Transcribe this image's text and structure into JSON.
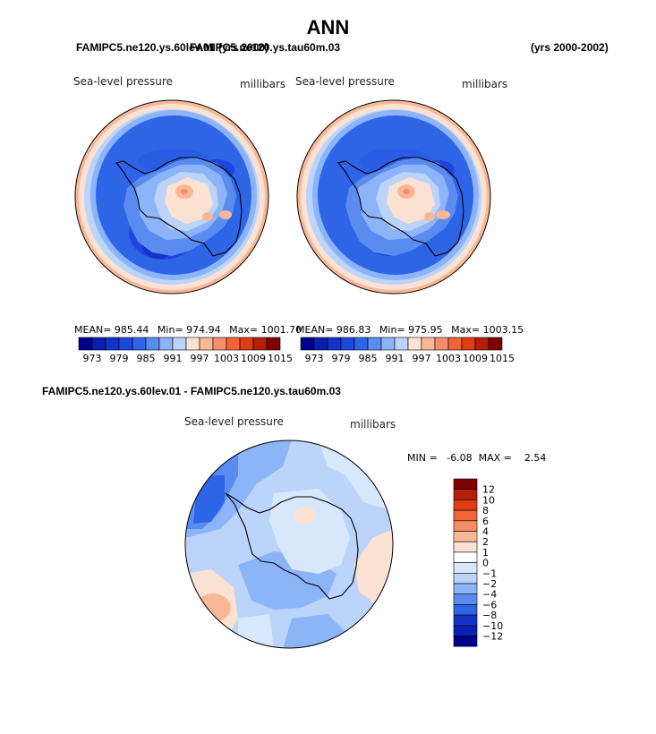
{
  "title": "ANN",
  "panels": [
    {
      "case_name": "FAMIPC5.ne120.ys.60lev.01",
      "years": "(yrs 2000)",
      "field": "Sea-level pressure",
      "units": "millibars",
      "stats": {
        "mean_label": "MEAN=",
        "mean": "985.44",
        "min_label": "Min=",
        "min": "974.94",
        "max_label": "Max=",
        "max": "1001.70"
      }
    },
    {
      "case_name": "FAMIPC5.ne120.ys.tau60m.03",
      "years": "(yrs 2000-2002)",
      "field": "Sea-level pressure",
      "units": "millibars",
      "stats": {
        "mean_label": "MEAN=",
        "mean": "986.83",
        "min_label": "Min=",
        "min": "975.95",
        "max_label": "Max=",
        "max": "1003.15"
      }
    }
  ],
  "diff_panel": {
    "title": "FAMIPC5.ne120.ys.60lev.01 - FAMIPC5.ne120.ys.tau60m.03",
    "field": "Sea-level pressure",
    "units": "millibars",
    "minmax": "MIN =   -6.08  MAX =    2.54"
  },
  "chart_data": [
    {
      "type": "heatmap",
      "projection": "south-polar-stereographic",
      "title": "FAMIPC5.ne120.ys.60lev.01 (yrs 2000) - Sea-level pressure (millibars)",
      "mean": 985.44,
      "min": 974.94,
      "max": 1001.7,
      "colorbar": {
        "levels": [
          973,
          976,
          979,
          982,
          985,
          988,
          991,
          994,
          997,
          1000,
          1003,
          1006,
          1009,
          1012,
          1015
        ],
        "tick_labels": [
          "973",
          "979",
          "985",
          "991",
          "997",
          "1003",
          "1009",
          "1015"
        ],
        "colors": [
          "#00008b",
          "#0a1fb0",
          "#1432c8",
          "#1e46dc",
          "#2e64e6",
          "#5a8cf0",
          "#8cb4f8",
          "#bcd4fa",
          "#fce2d2",
          "#f8b898",
          "#f48e68",
          "#f06438",
          "#e03c16",
          "#b41e0a",
          "#800000"
        ]
      }
    },
    {
      "type": "heatmap",
      "projection": "south-polar-stereographic",
      "title": "FAMIPC5.ne120.ys.tau60m.03 (yrs 2000-2002) - Sea-level pressure (millibars)",
      "mean": 986.83,
      "min": 975.95,
      "max": 1003.15,
      "colorbar": {
        "levels": [
          973,
          976,
          979,
          982,
          985,
          988,
          991,
          994,
          997,
          1000,
          1003,
          1006,
          1009,
          1012,
          1015
        ],
        "tick_labels": [
          "973",
          "979",
          "985",
          "991",
          "997",
          "1003",
          "1009",
          "1015"
        ],
        "colors": [
          "#00008b",
          "#0a1fb0",
          "#1432c8",
          "#1e46dc",
          "#2e64e6",
          "#5a8cf0",
          "#8cb4f8",
          "#bcd4fa",
          "#fce2d2",
          "#f8b898",
          "#f48e68",
          "#f06438",
          "#e03c16",
          "#b41e0a",
          "#800000"
        ]
      }
    },
    {
      "type": "heatmap",
      "projection": "south-polar-stereographic",
      "title": "FAMIPC5.ne120.ys.60lev.01 - FAMIPC5.ne120.ys.tau60m.03 - Sea-level pressure (millibars)",
      "min": -6.08,
      "max": 2.54,
      "colorbar": {
        "orientation": "vertical",
        "levels": [
          -12,
          -10,
          -8,
          -6,
          -4,
          -2,
          -1,
          0,
          1,
          2,
          4,
          6,
          8,
          10,
          12
        ],
        "tick_labels": [
          "12",
          "10",
          "8",
          "6",
          "4",
          "2",
          "1",
          "0",
          "−1",
          "−2",
          "−4",
          "−6",
          "−8",
          "−10",
          "−12"
        ],
        "colors_top_to_bottom": [
          "#800000",
          "#b41e0a",
          "#e03c16",
          "#f06438",
          "#f48e68",
          "#f8b898",
          "#fce2d2",
          "#ffffff",
          "#d8e8fc",
          "#bcd4fa",
          "#8cb4f8",
          "#5a8cf0",
          "#2e64e6",
          "#1432c8",
          "#0a1fb0",
          "#00008b"
        ]
      }
    }
  ]
}
